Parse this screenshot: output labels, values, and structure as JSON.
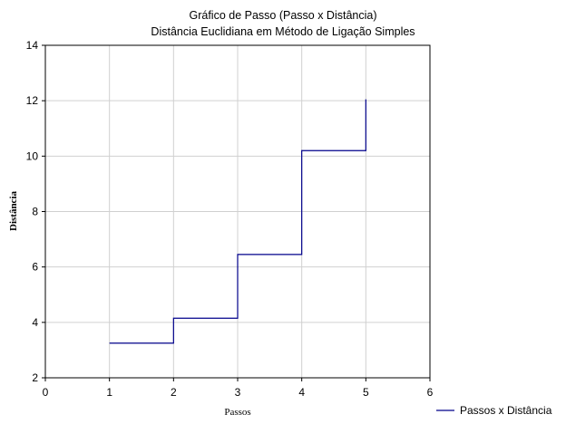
{
  "chart_data": {
    "type": "line",
    "step": true,
    "title": "Gráfico de Passo (Passo x Distância)",
    "subtitle": "Distância Euclidiana em Método de Ligação Simples",
    "xlabel": "Passos",
    "ylabel": "Distância",
    "xlim": [
      0,
      6
    ],
    "ylim": [
      2,
      14
    ],
    "xticks": [
      0,
      1,
      2,
      3,
      4,
      5,
      6
    ],
    "yticks": [
      2,
      4,
      6,
      8,
      10,
      12,
      14
    ],
    "grid": true,
    "legend_position": "bottom-right",
    "series": [
      {
        "name": "Passos x Distância",
        "color": "#00008B",
        "x": [
          1,
          2,
          3,
          4,
          5
        ],
        "y": [
          3.25,
          4.15,
          6.45,
          10.2,
          12.05
        ]
      }
    ]
  }
}
